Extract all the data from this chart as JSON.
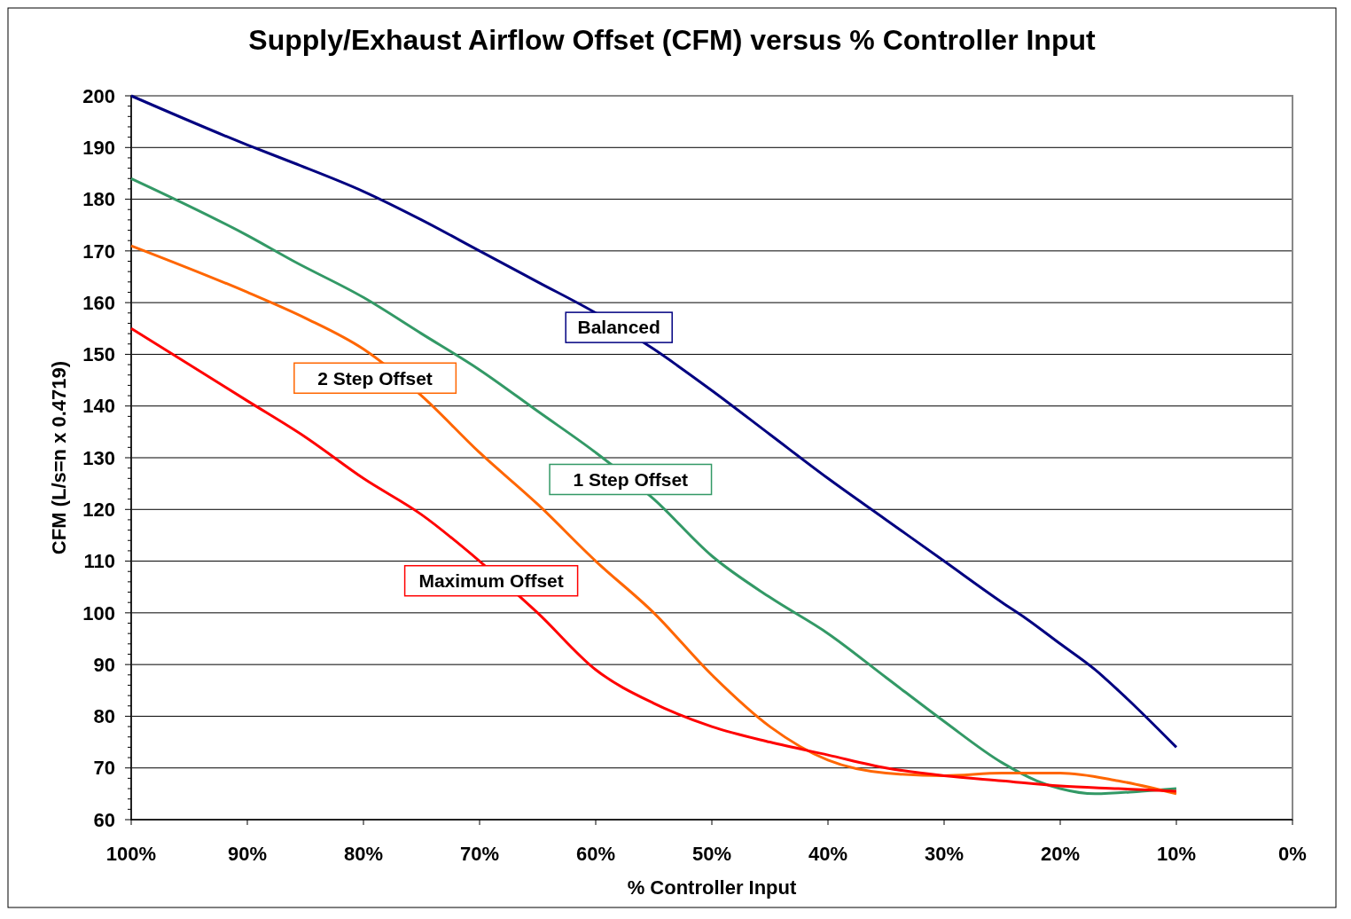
{
  "chart_data": {
    "type": "line",
    "title": "Supply/Exhaust Airflow Offset (CFM) versus % Controller Input",
    "xlabel": "% Controller Input",
    "ylabel": "CFM (L/s=n x 0.4719)",
    "xlim": [
      100,
      0
    ],
    "xticks": [
      {
        "value": 100,
        "label": "100%"
      },
      {
        "value": 90,
        "label": "90%"
      },
      {
        "value": 80,
        "label": "80%"
      },
      {
        "value": 70,
        "label": "70%"
      },
      {
        "value": 60,
        "label": "60%"
      },
      {
        "value": 50,
        "label": "50%"
      },
      {
        "value": 40,
        "label": "40%"
      },
      {
        "value": 30,
        "label": "30%"
      },
      {
        "value": 20,
        "label": "20%"
      },
      {
        "value": 10,
        "label": "10%"
      },
      {
        "value": 0,
        "label": "0%"
      }
    ],
    "ylim": [
      60,
      200
    ],
    "yticks": [
      60,
      70,
      80,
      90,
      100,
      110,
      120,
      130,
      140,
      150,
      160,
      170,
      180,
      190,
      200
    ],
    "grid": "y",
    "marker": "none",
    "line_style": "solid",
    "series": [
      {
        "name": "Balanced",
        "color": "#000080",
        "x": [
          100,
          90,
          86,
          80,
          75,
          70,
          65,
          60,
          55,
          50,
          45,
          40,
          35,
          30,
          25,
          23,
          20,
          17,
          15,
          10
        ],
        "values": [
          200,
          190.5,
          187,
          181.5,
          176,
          170,
          164,
          158,
          151,
          143,
          134.5,
          126,
          118,
          110,
          102,
          99,
          94,
          89,
          85,
          74
        ]
      },
      {
        "name": "1 Step Offset",
        "color": "#339966",
        "x": [
          100,
          90,
          86,
          80,
          75,
          70,
          65,
          60,
          55,
          50,
          45,
          40,
          35,
          30,
          25,
          22,
          20,
          17,
          13,
          10
        ],
        "values": [
          184,
          173,
          168,
          161,
          154,
          147,
          139,
          131,
          122,
          111,
          103,
          96,
          87.5,
          79,
          71,
          67.5,
          66,
          65,
          65.5,
          66
        ]
      },
      {
        "name": "2 Step Offset",
        "color": "#ff6600",
        "x": [
          100,
          90,
          85,
          80,
          75,
          70,
          65,
          60,
          55,
          50,
          45,
          40,
          35,
          30,
          25,
          20,
          15,
          10
        ],
        "values": [
          171,
          162,
          157,
          151,
          142,
          131,
          121,
          110,
          100,
          88,
          78,
          71.5,
          69,
          68.5,
          69,
          69,
          67.5,
          65
        ]
      },
      {
        "name": "Maximum Offset",
        "color": "#ff0000",
        "x": [
          100,
          90,
          85,
          80,
          75,
          70,
          65,
          60,
          55,
          50,
          45,
          40,
          35,
          30,
          25,
          20,
          15,
          10
        ],
        "values": [
          155,
          141,
          134,
          126,
          119,
          110,
          100,
          89,
          82.5,
          78,
          75,
          72.5,
          70,
          68.5,
          67.5,
          66.5,
          66,
          65.5
        ]
      }
    ]
  }
}
